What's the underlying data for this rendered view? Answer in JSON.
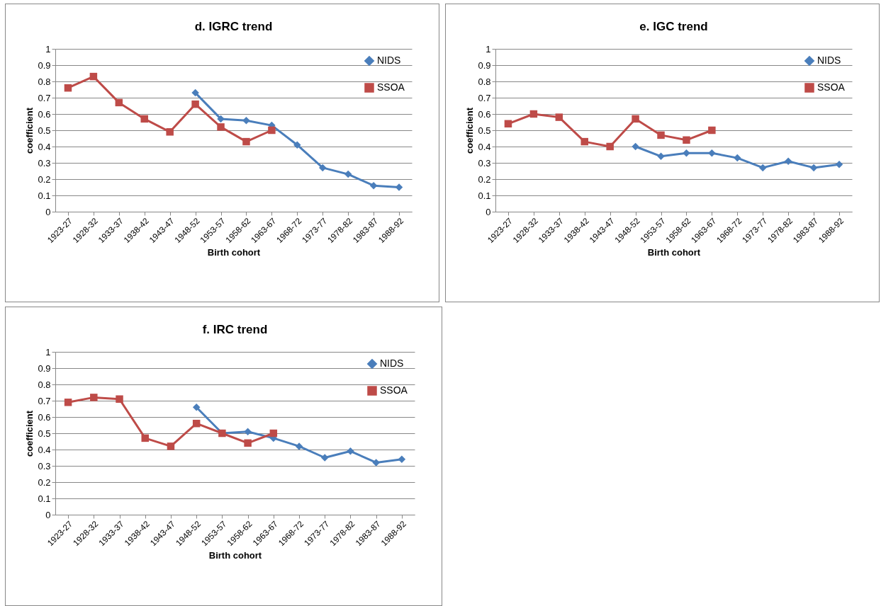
{
  "chart_data": [
    {
      "type": "line",
      "title": "d. IGRC trend",
      "xlabel": "Birth cohort",
      "ylabel": "coefficient",
      "categories": [
        "1923-27",
        "1928-32",
        "1933-37",
        "1938-42",
        "1943-47",
        "1948-52",
        "1953-57",
        "1958-62",
        "1963-67",
        "1968-72",
        "1973-77",
        "1978-82",
        "1983-87",
        "1988-92"
      ],
      "ylim": [
        0,
        1
      ],
      "yticks": [
        0,
        0.1,
        0.2,
        0.3,
        0.4,
        0.5,
        0.6,
        0.7,
        0.8,
        0.9,
        1
      ],
      "grid": "y",
      "legend": "top right",
      "series": [
        {
          "name": "NIDS",
          "color": "#4a7ebb",
          "marker": "diamond",
          "values": [
            null,
            null,
            null,
            null,
            null,
            0.73,
            0.57,
            0.56,
            0.53,
            0.41,
            0.27,
            0.23,
            0.16,
            0.15
          ]
        },
        {
          "name": "SSOA",
          "color": "#be4b48",
          "marker": "square",
          "values": [
            0.76,
            0.83,
            0.67,
            0.57,
            0.49,
            0.66,
            0.52,
            0.43,
            0.5,
            null,
            null,
            null,
            null,
            null
          ]
        }
      ]
    },
    {
      "type": "line",
      "title": "e. IGC trend",
      "xlabel": "Birth cohort",
      "ylabel": "coefficient",
      "categories": [
        "1923-27",
        "1928-32",
        "1933-37",
        "1938-42",
        "1943-47",
        "1948-52",
        "1953-57",
        "1958-62",
        "1963-67",
        "1968-72",
        "1973-77",
        "1978-82",
        "1983-87",
        "1988-92"
      ],
      "ylim": [
        0,
        1
      ],
      "yticks": [
        0,
        0.1,
        0.2,
        0.3,
        0.4,
        0.5,
        0.6,
        0.7,
        0.8,
        0.9,
        1
      ],
      "grid": "y",
      "legend": "top right",
      "series": [
        {
          "name": "NIDS",
          "color": "#4a7ebb",
          "marker": "diamond",
          "values": [
            null,
            null,
            null,
            null,
            null,
            0.4,
            0.34,
            0.36,
            0.36,
            0.33,
            0.27,
            0.31,
            0.27,
            0.29
          ]
        },
        {
          "name": "SSOA",
          "color": "#be4b48",
          "marker": "square",
          "values": [
            0.54,
            0.6,
            0.58,
            0.43,
            0.4,
            0.57,
            0.47,
            0.44,
            0.5,
            null,
            null,
            null,
            null,
            null
          ]
        }
      ]
    },
    {
      "type": "line",
      "title": "f. IRC trend",
      "xlabel": "Birth cohort",
      "ylabel": "coefficient",
      "categories": [
        "1923-27",
        "1928-32",
        "1933-37",
        "1938-42",
        "1943-47",
        "1948-52",
        "1953-57",
        "1958-62",
        "1963-67",
        "1968-72",
        "1973-77",
        "1978-82",
        "1983-87",
        "1988-92"
      ],
      "ylim": [
        0,
        1
      ],
      "yticks": [
        0,
        0.1,
        0.2,
        0.3,
        0.4,
        0.5,
        0.6,
        0.7,
        0.8,
        0.9,
        1
      ],
      "grid": "y",
      "legend": "top right",
      "series": [
        {
          "name": "NIDS",
          "color": "#4a7ebb",
          "marker": "diamond",
          "values": [
            null,
            null,
            null,
            null,
            null,
            0.66,
            0.5,
            0.51,
            0.47,
            0.42,
            0.35,
            0.39,
            0.32,
            0.34
          ]
        },
        {
          "name": "SSOA",
          "color": "#be4b48",
          "marker": "square",
          "values": [
            0.69,
            0.72,
            0.71,
            0.47,
            0.42,
            0.56,
            0.5,
            0.44,
            0.5,
            null,
            null,
            null,
            null,
            null
          ]
        }
      ]
    }
  ]
}
